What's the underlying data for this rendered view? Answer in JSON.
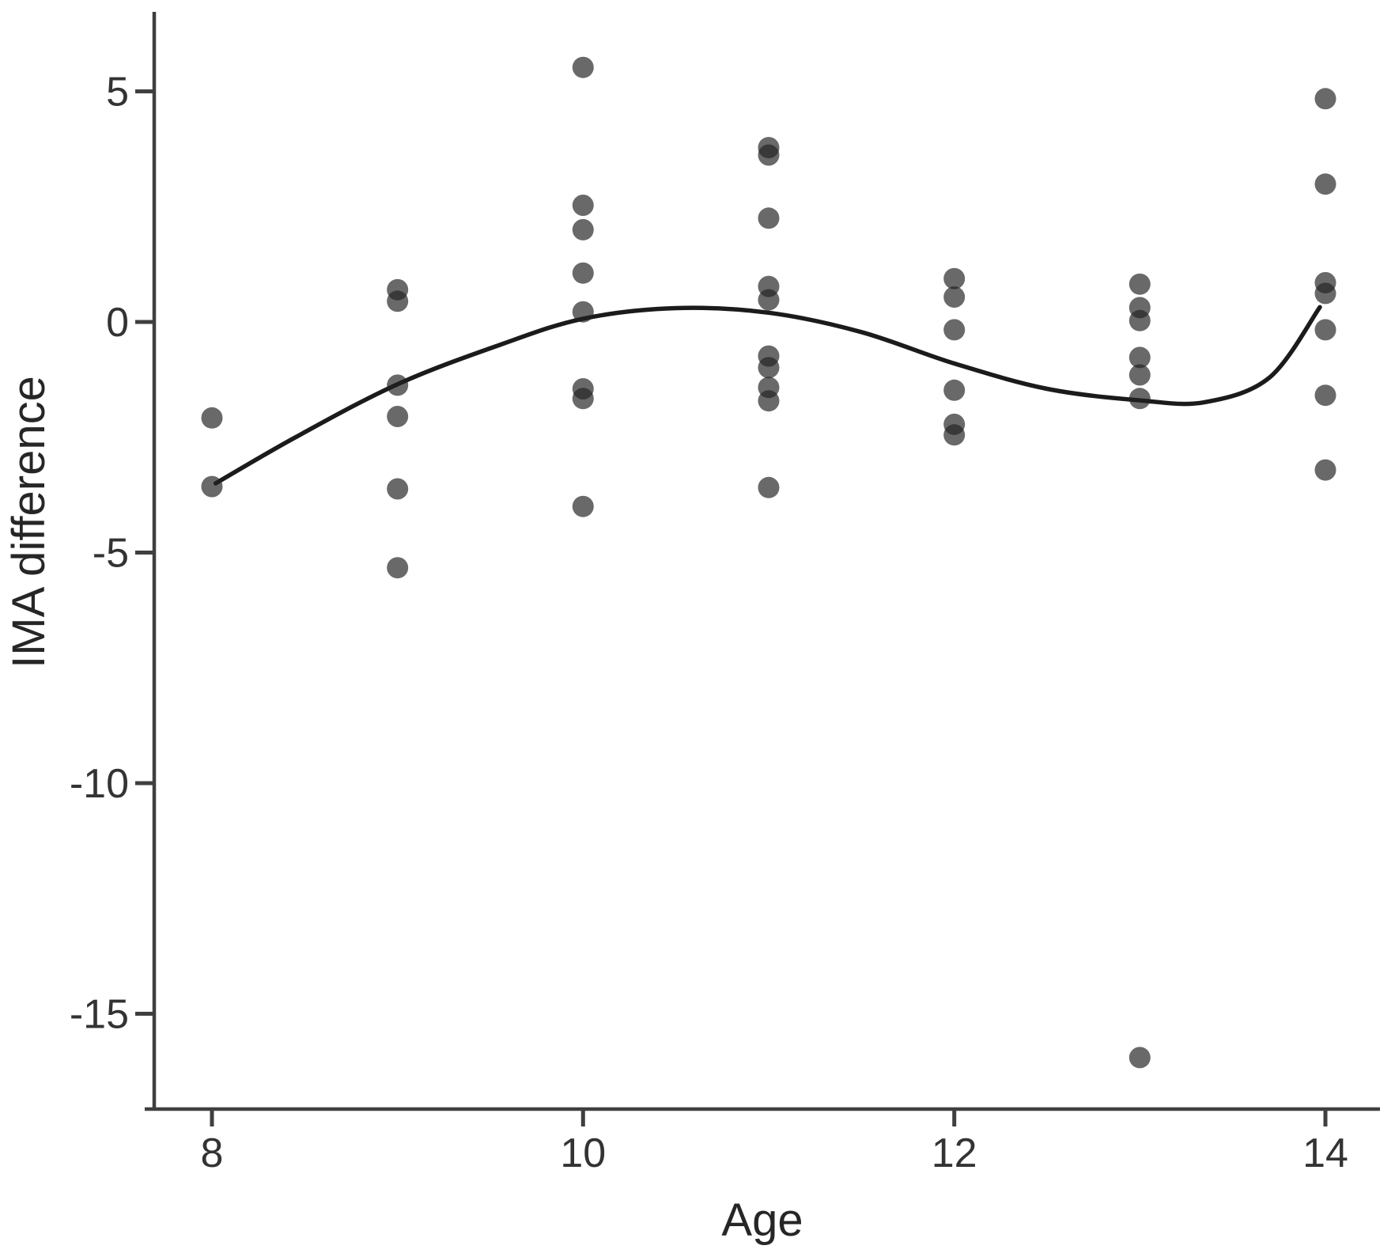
{
  "figure": {
    "kind": "statistical scatter plot with smoothed fit curve",
    "xlabel": "Age",
    "ylabel": "IMA difference"
  },
  "style": {
    "background": "#ffffff",
    "axis_color": "#3f3f3f",
    "tick_label_color": "#333333",
    "title_color": "#262626",
    "point_color": "#222222",
    "point_opacity": 0.68,
    "point_radius": 13.5,
    "curve_color": "#1b1b1b",
    "curve_width": 5.5
  },
  "chart_data": {
    "type": "scatter",
    "title": "",
    "xlabel": "Age",
    "ylabel": "IMA difference",
    "x_ticks": [
      8,
      10,
      12,
      14
    ],
    "y_ticks": [
      5,
      0,
      -5,
      -10,
      -15
    ],
    "xlim": [
      7.64,
      14.3
    ],
    "ylim": [
      -17.1,
      6.7
    ],
    "grid": false,
    "legend": "none",
    "points": [
      [
        8,
        -2.08
      ],
      [
        8,
        -3.57
      ],
      [
        9,
        0.7
      ],
      [
        9,
        0.45
      ],
      [
        9,
        -1.37
      ],
      [
        9,
        -2.05
      ],
      [
        9,
        -3.62
      ],
      [
        9,
        -5.33
      ],
      [
        10,
        5.52
      ],
      [
        10,
        2.53
      ],
      [
        10,
        2.0
      ],
      [
        10,
        1.06
      ],
      [
        10,
        0.22
      ],
      [
        10,
        -1.45
      ],
      [
        10,
        -1.66
      ],
      [
        10,
        -4.0
      ],
      [
        11,
        3.78
      ],
      [
        11,
        3.62
      ],
      [
        11,
        2.25
      ],
      [
        11,
        0.77
      ],
      [
        11,
        0.48
      ],
      [
        11,
        -0.74
      ],
      [
        11,
        -0.99
      ],
      [
        11,
        -1.42
      ],
      [
        11,
        -1.71
      ],
      [
        11,
        -3.59
      ],
      [
        12,
        0.94
      ],
      [
        12,
        0.54
      ],
      [
        12,
        -0.17
      ],
      [
        12,
        -1.48
      ],
      [
        12,
        -2.22
      ],
      [
        12,
        -2.45
      ],
      [
        13,
        0.82
      ],
      [
        13,
        0.31
      ],
      [
        13,
        0.03
      ],
      [
        13,
        -0.77
      ],
      [
        13,
        -1.15
      ],
      [
        13,
        -1.66
      ],
      [
        13,
        -15.95
      ],
      [
        14,
        4.84
      ],
      [
        14,
        2.99
      ],
      [
        14,
        0.85
      ],
      [
        14,
        0.62
      ],
      [
        14,
        -0.17
      ],
      [
        14,
        -1.59
      ],
      [
        14,
        -3.21
      ]
    ],
    "smooth_curve": [
      [
        8.02,
        -3.5
      ],
      [
        8.45,
        -2.5
      ],
      [
        9.0,
        -1.35
      ],
      [
        9.55,
        -0.5
      ],
      [
        10.0,
        0.07
      ],
      [
        10.5,
        0.3
      ],
      [
        11.0,
        0.2
      ],
      [
        11.5,
        -0.22
      ],
      [
        12.0,
        -0.9
      ],
      [
        12.5,
        -1.45
      ],
      [
        13.0,
        -1.7
      ],
      [
        13.35,
        -1.74
      ],
      [
        13.7,
        -1.2
      ],
      [
        13.97,
        0.32
      ]
    ]
  }
}
